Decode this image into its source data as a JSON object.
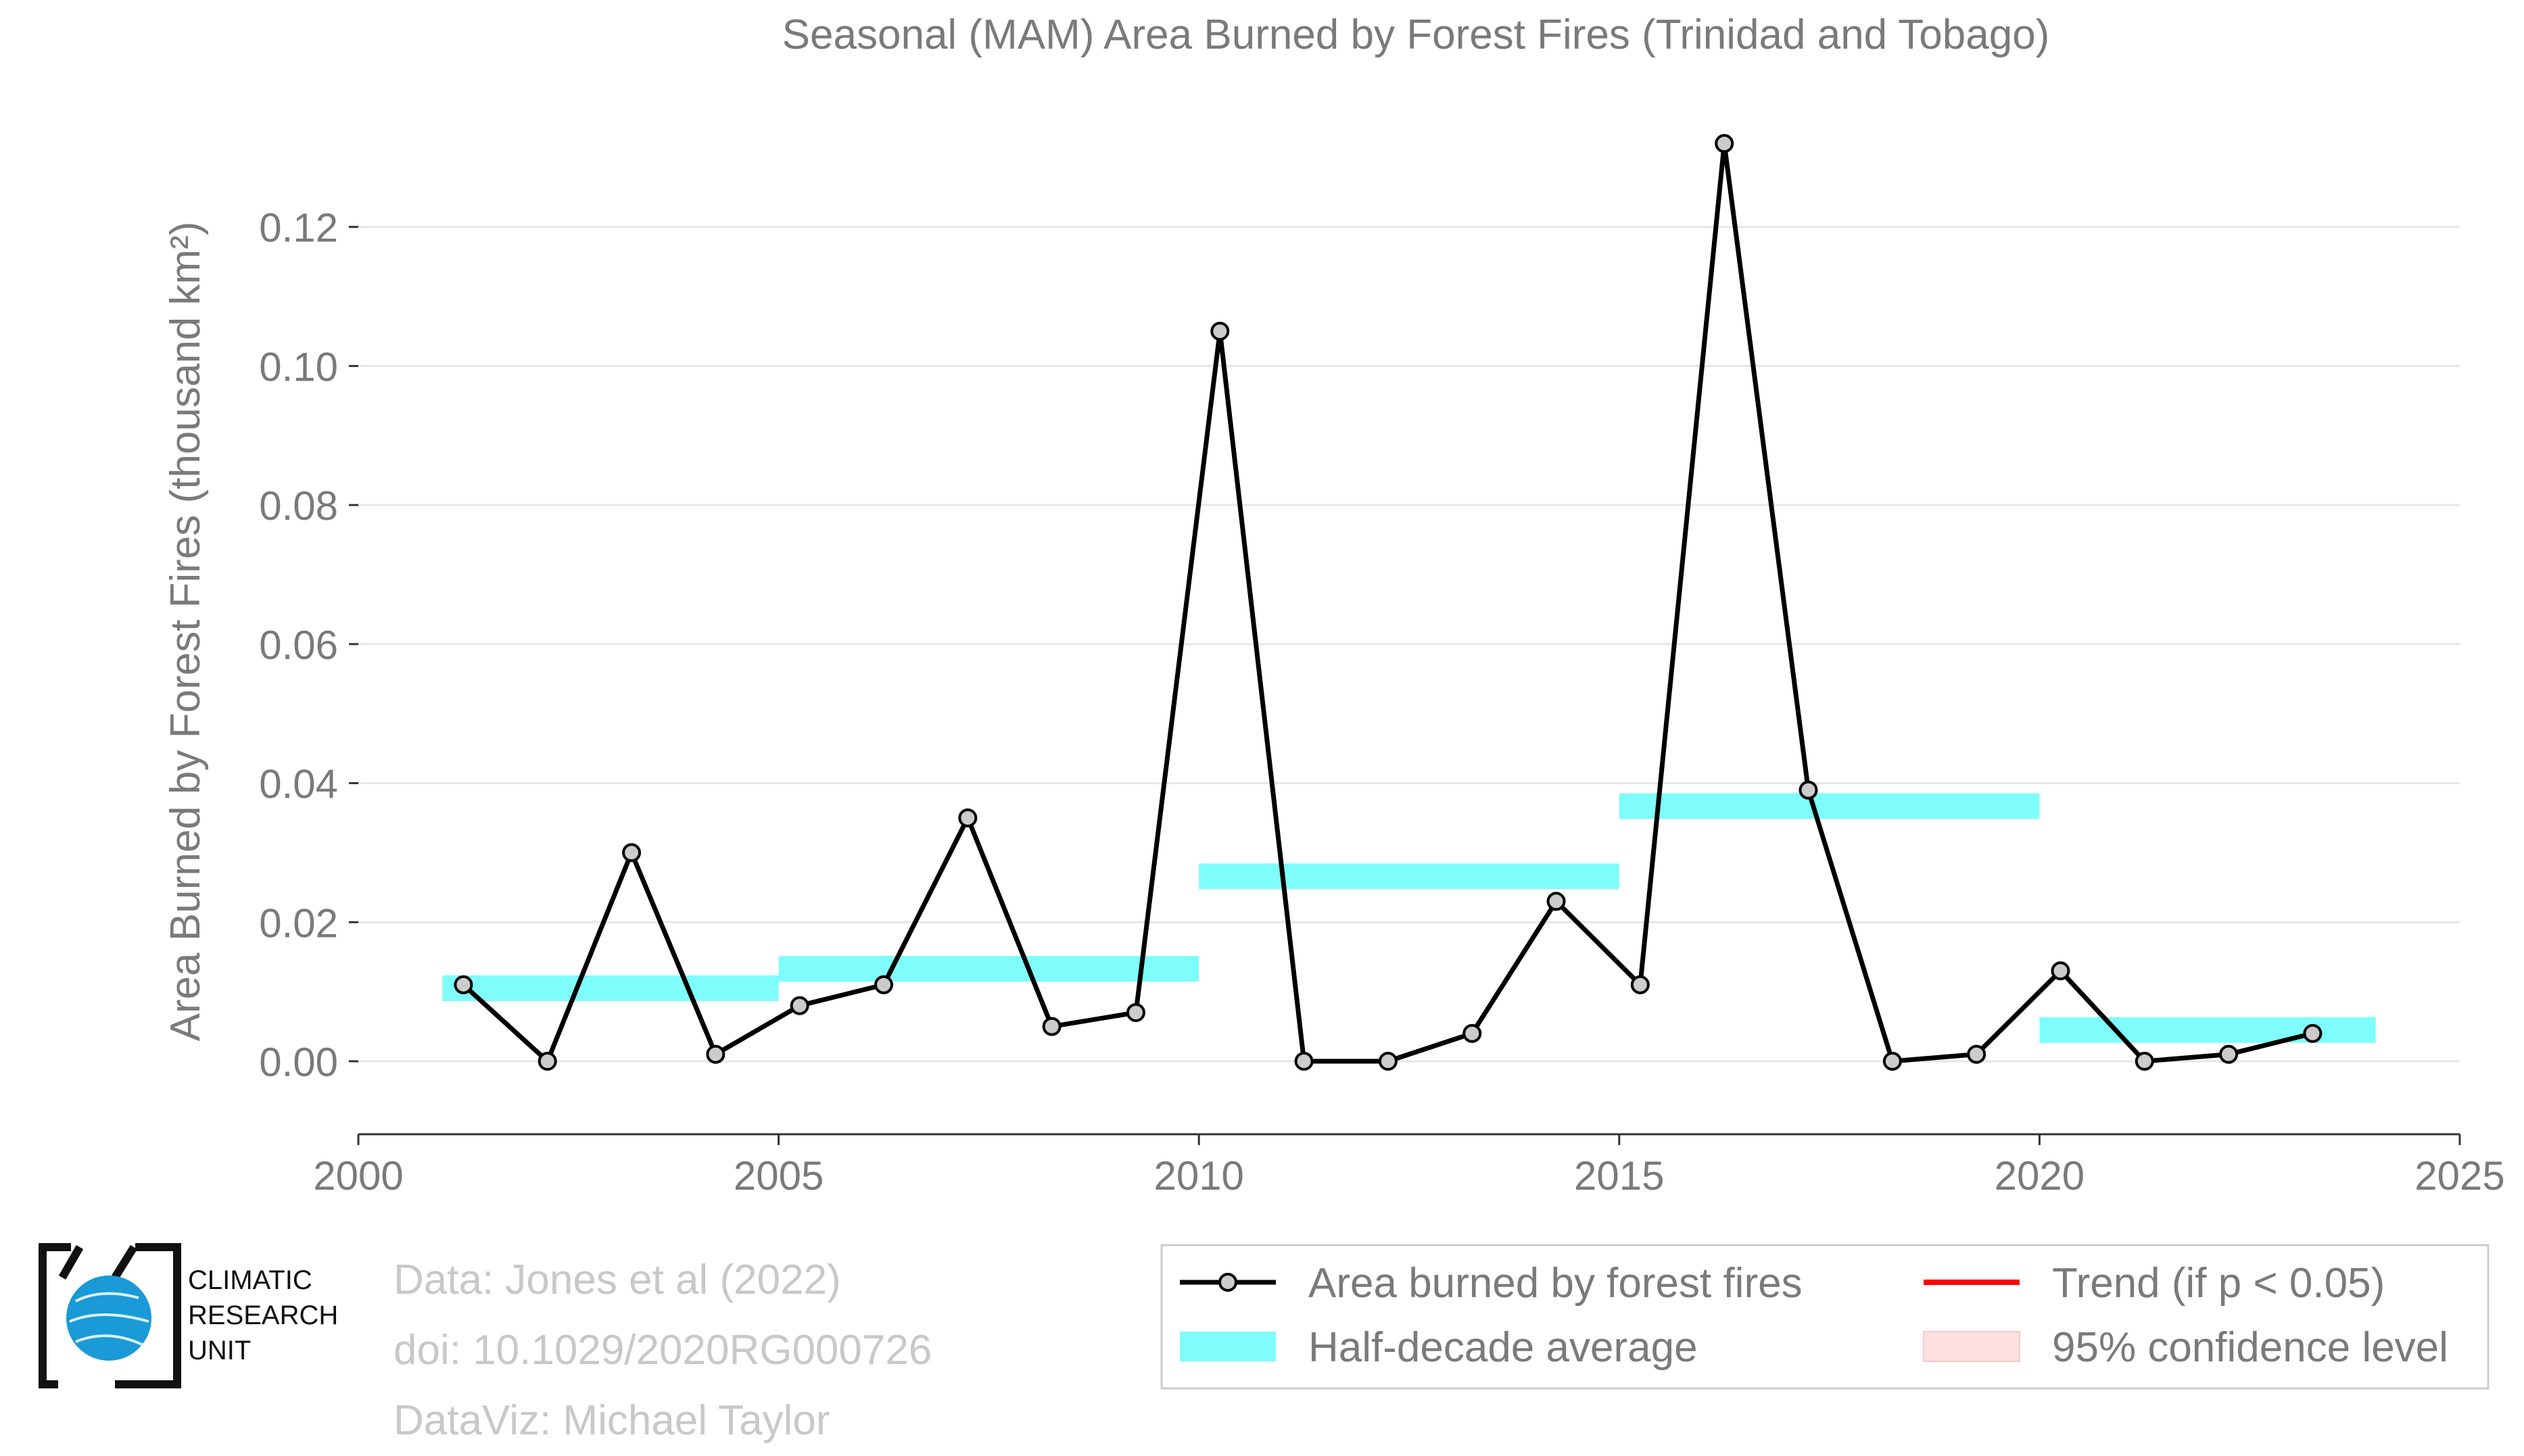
{
  "chart_data": {
    "type": "line",
    "title": "Seasonal (MAM) Area Burned by Forest Fires (Trinidad and Tobago)",
    "ylabel": "Area Burned by Forest Fires (thousand km²)",
    "xlim": [
      2000,
      2025
    ],
    "ylim": [
      -0.0105,
      0.14
    ],
    "xticks": [
      2000,
      2005,
      2010,
      2015,
      2020,
      2025
    ],
    "yticks": [
      0.0,
      0.02,
      0.04,
      0.06,
      0.08,
      0.1,
      0.12
    ],
    "ytick_labels": [
      "0.00",
      "0.02",
      "0.04",
      "0.06",
      "0.08",
      "0.10",
      "0.12"
    ],
    "grid": true,
    "series": [
      {
        "name": "Area burned by forest fires",
        "color": "#000000",
        "marker_fill": "#cccccc",
        "x": [
          2001.25,
          2002.25,
          2003.25,
          2004.25,
          2005.25,
          2006.25,
          2007.25,
          2008.25,
          2009.25,
          2010.25,
          2011.25,
          2012.25,
          2013.25,
          2014.25,
          2015.25,
          2016.25,
          2017.25,
          2018.25,
          2019.25,
          2020.25,
          2021.25,
          2022.25,
          2023.25
        ],
        "y": [
          0.011,
          0.0,
          0.03,
          0.001,
          0.008,
          0.011,
          0.035,
          0.005,
          0.007,
          0.105,
          0.0,
          0.0,
          0.004,
          0.023,
          0.011,
          0.132,
          0.039,
          0.0,
          0.001,
          0.013,
          0.0,
          0.001,
          0.004
        ]
      }
    ],
    "half_decade_average": {
      "name": "Half-decade average",
      "color": "#7ffcfc",
      "segments": [
        {
          "x0": 2001,
          "x1": 2005,
          "y": 0.0105
        },
        {
          "x0": 2005,
          "x1": 2010,
          "y": 0.0133
        },
        {
          "x0": 2010,
          "x1": 2015,
          "y": 0.0266
        },
        {
          "x0": 2015,
          "x1": 2020,
          "y": 0.0367
        },
        {
          "x0": 2020,
          "x1": 2024,
          "y": 0.0045
        }
      ]
    },
    "legend": {
      "placement": "bottom-right",
      "items": [
        {
          "label": "Area burned by forest fires",
          "kind": "line-marker",
          "color": "#000000"
        },
        {
          "label": "Trend (if p < 0.05)",
          "kind": "line",
          "color": "#ff0000"
        },
        {
          "label": "Half-decade average",
          "kind": "band",
          "color": "#7ffcfc"
        },
        {
          "label": "95% confidence level",
          "kind": "band",
          "color": "#fde0e0"
        }
      ]
    }
  },
  "logo": {
    "line1": "CLIMATIC",
    "line2": "RESEARCH",
    "line3": "UNIT"
  },
  "credits": {
    "data": "Data: Jones et al (2022)",
    "doi": "doi: 10.1029/2020RG000726",
    "dataviz": "DataViz: Michael Taylor"
  }
}
